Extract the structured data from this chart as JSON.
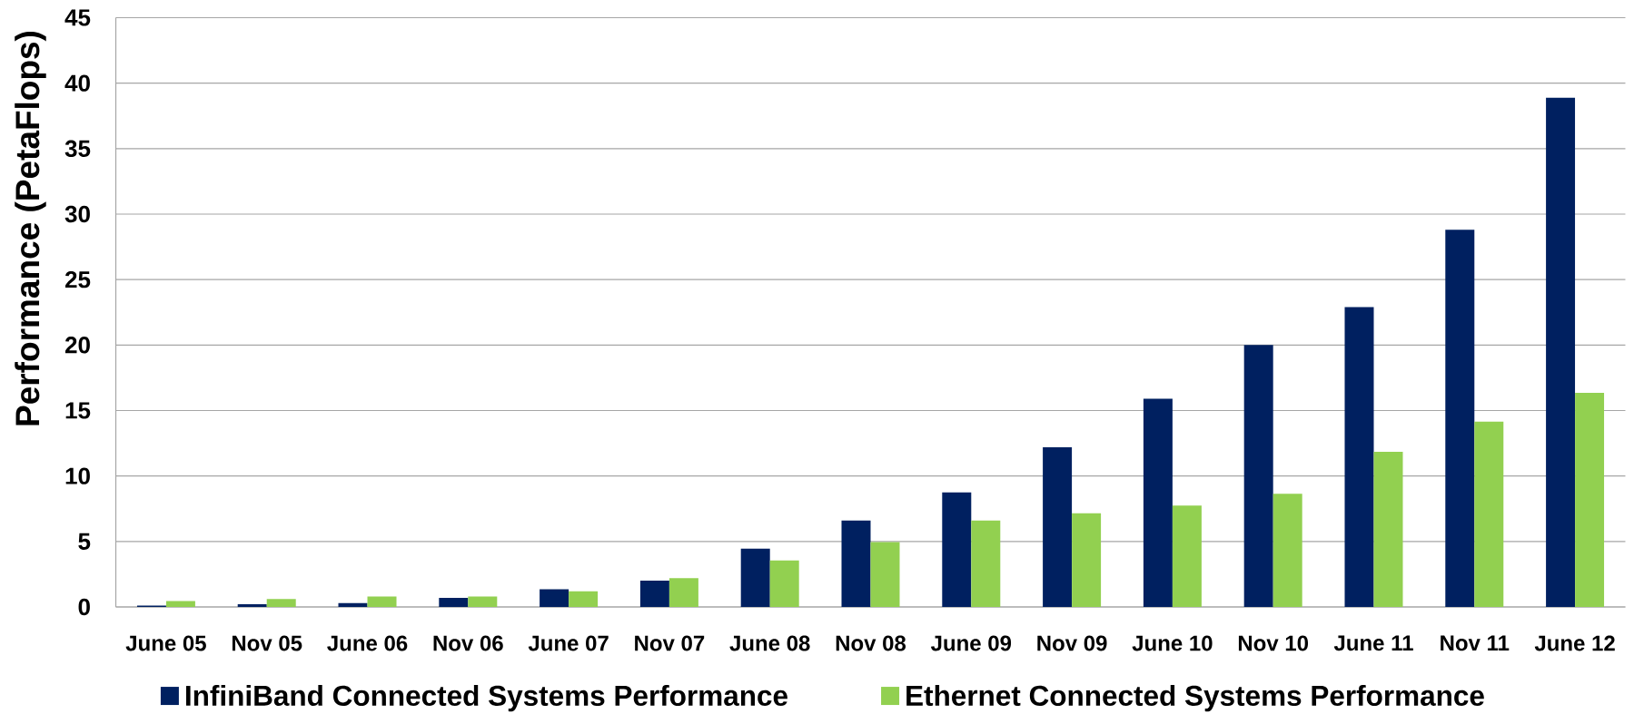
{
  "chart_data": {
    "type": "bar",
    "categories": [
      "June 05",
      "Nov 05",
      "June 06",
      "Nov 06",
      "June 07",
      "Nov 07",
      "June 08",
      "Nov 08",
      "June 09",
      "Nov 09",
      "June 10",
      "Nov 10",
      "June 11",
      "Nov 11",
      "June 12"
    ],
    "series": [
      {
        "name": "InfiniBand Connected Systems Performance",
        "color": "#002060",
        "values": [
          0.1,
          0.2,
          0.3,
          0.7,
          1.35,
          2.0,
          4.45,
          6.6,
          8.75,
          12.2,
          15.9,
          20.0,
          22.9,
          28.8,
          38.9
        ]
      },
      {
        "name": "Ethernet Connected Systems Performance",
        "color": "#92d050",
        "values": [
          0.45,
          0.6,
          0.8,
          0.8,
          1.2,
          2.2,
          3.55,
          4.95,
          6.6,
          7.15,
          7.75,
          8.65,
          11.85,
          14.15,
          16.35
        ]
      }
    ],
    "ylabel": "Performance (PetaFlops)",
    "ylim": [
      0,
      45
    ],
    "yticks": [
      0,
      5,
      10,
      15,
      20,
      25,
      30,
      35,
      40,
      45
    ],
    "grid": "y",
    "legend": "bottom"
  }
}
